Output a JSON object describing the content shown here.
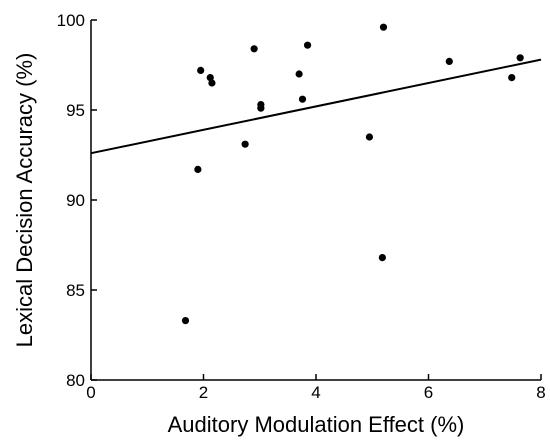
{
  "chart_data": {
    "type": "scatter",
    "xlabel": "Auditory Modulation Effect (%)",
    "ylabel": "Lexical Decision Accuracy (%)",
    "xlim": [
      0,
      8
    ],
    "ylim": [
      80,
      100
    ],
    "xticks": [
      0,
      2,
      4,
      6,
      8
    ],
    "yticks": [
      80,
      85,
      90,
      95,
      100
    ],
    "xtick_labels": [
      "0",
      "2",
      "4",
      "6",
      "8"
    ],
    "ytick_labels": [
      "80",
      "85",
      "90",
      "95",
      "100"
    ],
    "grid": false,
    "series": [
      {
        "marker": "filled-circle",
        "color": "#000000",
        "points": [
          {
            "x": 1.68,
            "y": 83.3
          },
          {
            "x": 1.9,
            "y": 91.7
          },
          {
            "x": 1.95,
            "y": 97.2
          },
          {
            "x": 2.12,
            "y": 96.8
          },
          {
            "x": 2.15,
            "y": 96.5
          },
          {
            "x": 2.74,
            "y": 93.1
          },
          {
            "x": 2.9,
            "y": 98.4
          },
          {
            "x": 3.02,
            "y": 95.3
          },
          {
            "x": 3.02,
            "y": 95.1
          },
          {
            "x": 3.7,
            "y": 97.0
          },
          {
            "x": 3.76,
            "y": 95.6
          },
          {
            "x": 3.85,
            "y": 98.6
          },
          {
            "x": 4.95,
            "y": 93.5
          },
          {
            "x": 5.18,
            "y": 86.8
          },
          {
            "x": 5.2,
            "y": 99.6
          },
          {
            "x": 6.37,
            "y": 97.7
          },
          {
            "x": 7.48,
            "y": 96.8
          },
          {
            "x": 7.63,
            "y": 97.9
          }
        ]
      }
    ],
    "regression_line": {
      "x": [
        0,
        8
      ],
      "y": [
        92.6,
        97.8
      ],
      "color": "#000000"
    }
  }
}
